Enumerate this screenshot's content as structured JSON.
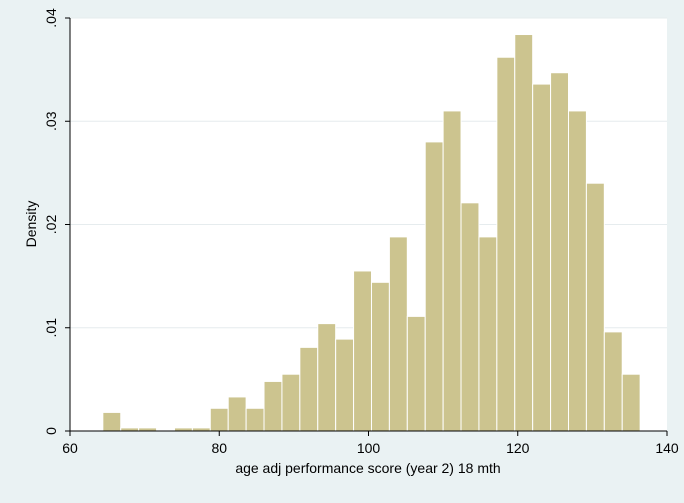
{
  "chart_data": {
    "type": "bar",
    "subtype": "histogram",
    "xlabel": "age adj performance score (year 2) 18 mth",
    "ylabel": "Density",
    "xlim": [
      60,
      140
    ],
    "ylim": [
      0,
      0.04
    ],
    "xticks": [
      60,
      80,
      100,
      120,
      140
    ],
    "xtick_labels": [
      "60",
      "80",
      "100",
      "120",
      "140"
    ],
    "yticks": [
      0,
      0.01,
      0.02,
      0.03,
      0.04
    ],
    "ytick_labels": [
      "0",
      ".01",
      ".02",
      ".03",
      ".04"
    ],
    "grid": "horizontal",
    "bar_color": "#ccc48f",
    "bar_edge_color": "#ffffff",
    "plot_background": "#ffffff",
    "page_background": "#eaf2f3",
    "bins": [
      {
        "x0": 64.4,
        "x1": 66.8,
        "value": 0.0018
      },
      {
        "x0": 66.8,
        "x1": 69.2,
        "value": 0.0003
      },
      {
        "x0": 69.2,
        "x1": 71.6,
        "value": 0.0003
      },
      {
        "x0": 71.6,
        "x1": 74.0,
        "value": 0.0
      },
      {
        "x0": 74.0,
        "x1": 76.4,
        "value": 0.0003
      },
      {
        "x0": 76.4,
        "x1": 78.8,
        "value": 0.0003
      },
      {
        "x0": 78.8,
        "x1": 81.2,
        "value": 0.0022
      },
      {
        "x0": 81.2,
        "x1": 83.6,
        "value": 0.0033
      },
      {
        "x0": 83.6,
        "x1": 86.0,
        "value": 0.0022
      },
      {
        "x0": 86.0,
        "x1": 88.4,
        "value": 0.0048
      },
      {
        "x0": 88.4,
        "x1": 90.8,
        "value": 0.0055
      },
      {
        "x0": 90.8,
        "x1": 93.2,
        "value": 0.0081
      },
      {
        "x0": 93.2,
        "x1": 95.6,
        "value": 0.0104
      },
      {
        "x0": 95.6,
        "x1": 98.0,
        "value": 0.0089
      },
      {
        "x0": 98.0,
        "x1": 100.4,
        "value": 0.0155
      },
      {
        "x0": 100.4,
        "x1": 102.8,
        "value": 0.0144
      },
      {
        "x0": 102.8,
        "x1": 105.2,
        "value": 0.0188
      },
      {
        "x0": 105.2,
        "x1": 107.6,
        "value": 0.0111
      },
      {
        "x0": 107.6,
        "x1": 110.0,
        "value": 0.028
      },
      {
        "x0": 110.0,
        "x1": 112.4,
        "value": 0.031
      },
      {
        "x0": 112.4,
        "x1": 114.8,
        "value": 0.0221
      },
      {
        "x0": 114.8,
        "x1": 117.2,
        "value": 0.0188
      },
      {
        "x0": 117.2,
        "x1": 119.6,
        "value": 0.0362
      },
      {
        "x0": 119.6,
        "x1": 122.0,
        "value": 0.0384
      },
      {
        "x0": 122.0,
        "x1": 124.4,
        "value": 0.0336
      },
      {
        "x0": 124.4,
        "x1": 126.8,
        "value": 0.0347
      },
      {
        "x0": 126.8,
        "x1": 129.2,
        "value": 0.031
      },
      {
        "x0": 129.2,
        "x1": 131.6,
        "value": 0.024
      },
      {
        "x0": 131.6,
        "x1": 134.0,
        "value": 0.0096
      },
      {
        "x0": 134.0,
        "x1": 136.4,
        "value": 0.0055
      }
    ]
  }
}
